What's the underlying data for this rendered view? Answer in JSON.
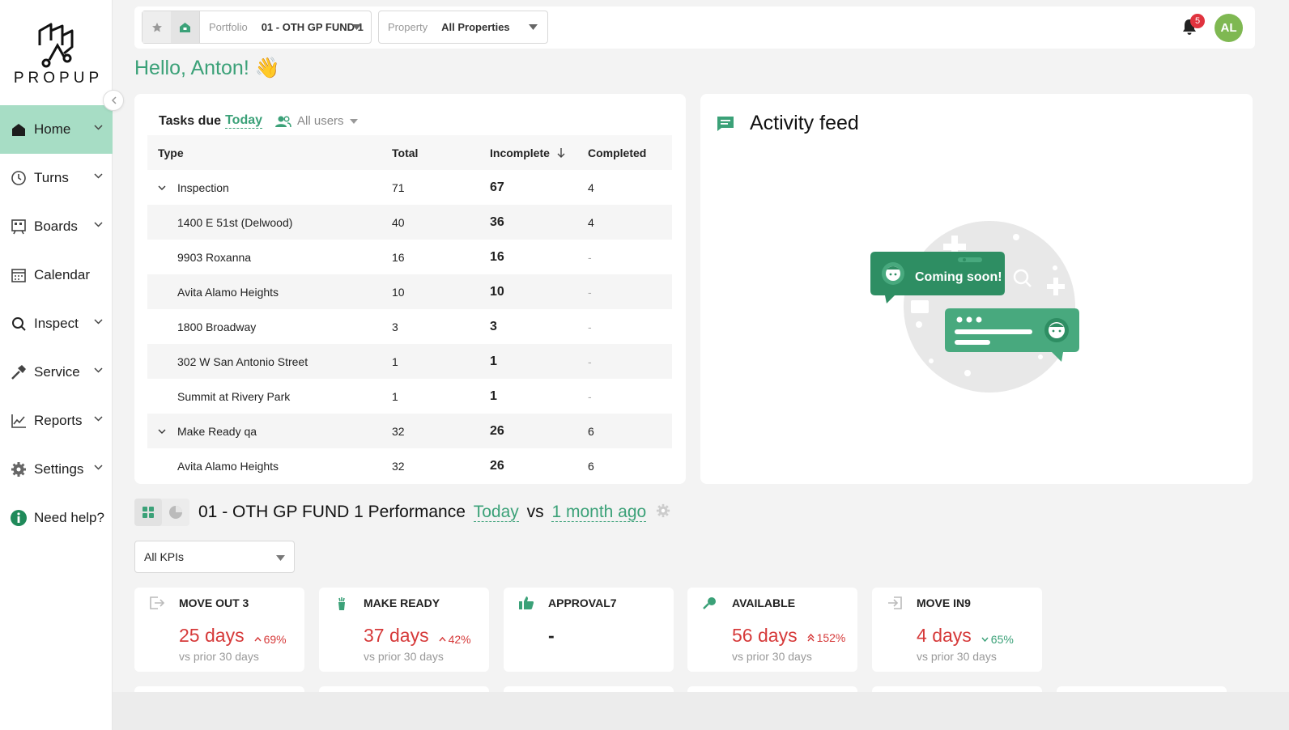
{
  "app": {
    "logo_text": "PROPUP"
  },
  "sidebar": {
    "items": [
      {
        "label": "Home",
        "icon": "home-icon",
        "active": true,
        "has_submenu": true
      },
      {
        "label": "Turns",
        "icon": "turns-icon",
        "has_submenu": true
      },
      {
        "label": "Boards",
        "icon": "boards-icon",
        "has_submenu": true
      },
      {
        "label": "Calendar",
        "icon": "calendar-icon",
        "has_submenu": false
      },
      {
        "label": "Inspect",
        "icon": "inspect-icon",
        "has_submenu": true
      },
      {
        "label": "Service",
        "icon": "service-icon",
        "has_submenu": true
      },
      {
        "label": "Reports",
        "icon": "reports-icon",
        "has_submenu": true
      },
      {
        "label": "Settings",
        "icon": "settings-icon",
        "has_submenu": true
      },
      {
        "label": "Need help?",
        "icon": "help-icon",
        "has_submenu": false
      }
    ]
  },
  "topbar": {
    "portfolio": {
      "label": "Portfolio",
      "value": "01 - OTH GP FUND 1"
    },
    "property": {
      "label": "Property",
      "value": "All Properties"
    },
    "notification_count": "5",
    "avatar_initials": "AL"
  },
  "greeting": "Hello, Anton! 👋",
  "tasks": {
    "title": "Tasks due",
    "period": "Today",
    "users_filter": "All users",
    "columns": {
      "type": "Type",
      "total": "Total",
      "incomplete": "Incomplete",
      "completed": "Completed"
    },
    "rows": [
      {
        "type": "Inspection",
        "total": "71",
        "incomplete": "67",
        "completed": "4",
        "group": true
      },
      {
        "type": "1400 E 51st (Delwood)",
        "total": "40",
        "incomplete": "36",
        "completed": "4"
      },
      {
        "type": "9903 Roxanna",
        "total": "16",
        "incomplete": "16",
        "completed": "-"
      },
      {
        "type": "Avita Alamo Heights",
        "total": "10",
        "incomplete": "10",
        "completed": "-"
      },
      {
        "type": "1800 Broadway",
        "total": "3",
        "incomplete": "3",
        "completed": "-"
      },
      {
        "type": "302 W San Antonio Street",
        "total": "1",
        "incomplete": "1",
        "completed": "-"
      },
      {
        "type": "Summit at Rivery Park",
        "total": "1",
        "incomplete": "1",
        "completed": "-"
      },
      {
        "type": "Make Ready qa",
        "total": "32",
        "incomplete": "26",
        "completed": "6",
        "group": true
      },
      {
        "type": "Avita Alamo Heights",
        "total": "32",
        "incomplete": "26",
        "completed": "6"
      }
    ]
  },
  "activity": {
    "title": "Activity feed",
    "coming_soon": "Coming soon!"
  },
  "performance": {
    "title": "01 - OTH GP FUND 1 Performance",
    "current": "Today",
    "vs": "vs",
    "compare": "1 month ago",
    "kpi_filter": "All KPIs",
    "kpis": [
      {
        "title": "MOVE OUT 3",
        "icon": "move-out-icon",
        "value": "25",
        "unit": "days",
        "change": "69%",
        "direction": "up",
        "sub": "vs prior 30 days"
      },
      {
        "title": "MAKE READY",
        "icon": "make-ready-icon",
        "value": "37",
        "unit": "days",
        "change": "42%",
        "direction": "up",
        "sub": "vs prior 30 days"
      },
      {
        "title": "APPROVAL7",
        "icon": "thumbs-up-icon",
        "value": "-",
        "unit": "",
        "change": "",
        "direction": "none",
        "sub": ""
      },
      {
        "title": "AVAILABLE",
        "icon": "available-icon",
        "value": "56",
        "unit": "days",
        "change": "152%",
        "direction": "up-double",
        "sub": "vs prior 30 days"
      },
      {
        "title": "MOVE IN9",
        "icon": "move-in-icon",
        "value": "4",
        "unit": "days",
        "change": "65%",
        "direction": "down",
        "sub": "vs prior 30 days"
      }
    ]
  },
  "colors": {
    "accent": "#3ba178",
    "active_nav": "#a7ddc5",
    "negative": "#d63a3a",
    "badge": "#e0333e",
    "avatar": "#7fb852"
  }
}
